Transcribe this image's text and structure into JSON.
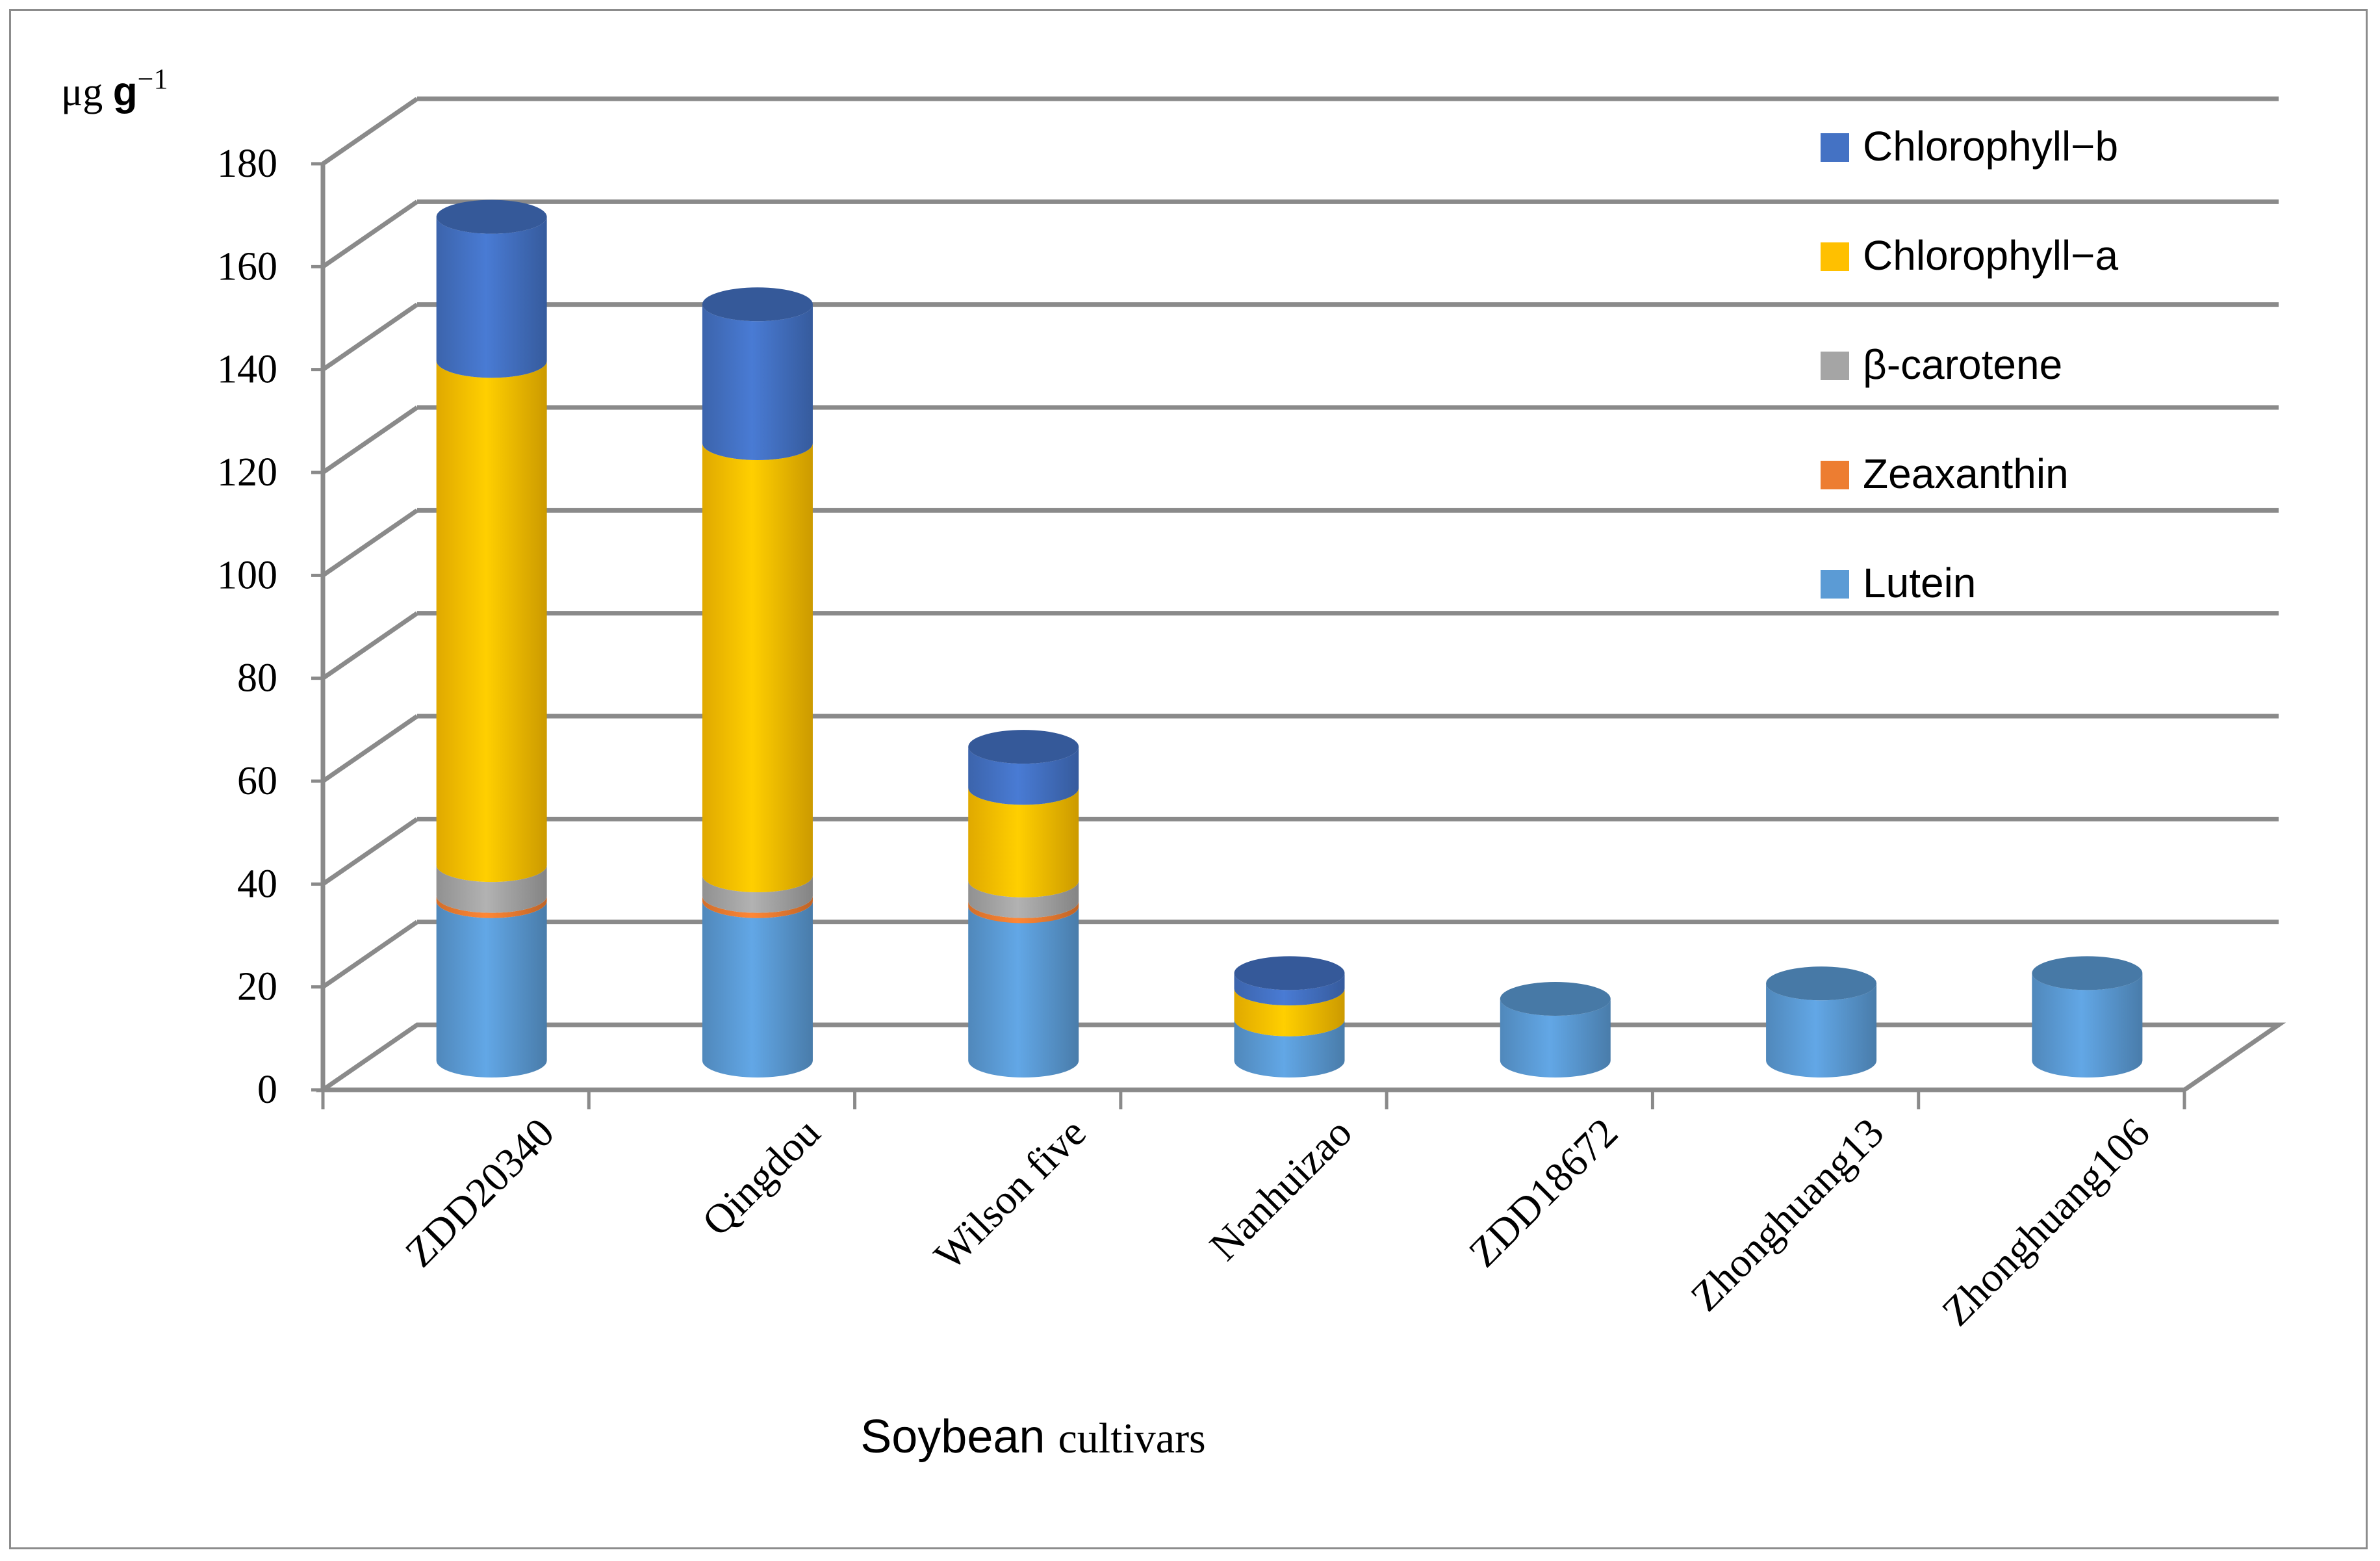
{
  "chart_data": {
    "type": "bar",
    "stacked": true,
    "style": "3d-cylinder",
    "title": "",
    "unit_label_main": "μg ",
    "unit_label_bold": "g",
    "unit_label_sup": "−1",
    "xlabel_part1": "Soybean ",
    "xlabel_part2": "cultivars",
    "ylim": [
      0,
      180
    ],
    "yticks": [
      0,
      20,
      40,
      60,
      80,
      100,
      120,
      140,
      160,
      180
    ],
    "yticks_text": [
      "0",
      "20",
      "40",
      "60",
      "80",
      "100",
      "120",
      "140",
      "160",
      "180"
    ],
    "grid": true,
    "legend_position": "top-right",
    "categories": [
      "ZDD20340",
      "Qingdou",
      "Wilson five",
      "Nanhuizao",
      "ZDD18672",
      "Zhonghuang13",
      "Zhonghuang106"
    ],
    "series": [
      {
        "name": "Lutein",
        "color": "#5b9bd5",
        "values": [
          31,
          31,
          30,
          8,
          12,
          15,
          17
        ]
      },
      {
        "name": "Zeaxanthin",
        "color": "#ed7d31",
        "values": [
          1,
          1,
          1,
          0,
          0,
          0,
          0
        ]
      },
      {
        "name": "β-carotene",
        "color": "#a5a5a5",
        "values": [
          6,
          4,
          4,
          0,
          0,
          0,
          0
        ]
      },
      {
        "name": "Chlorophyll−a",
        "color": "#ffc000",
        "values": [
          98,
          84,
          18,
          6,
          0,
          0,
          0
        ]
      },
      {
        "name": "Chlorophyll−b",
        "color": "#4472c4",
        "values": [
          28,
          27,
          8,
          3,
          0,
          0,
          0
        ]
      }
    ],
    "legend_order": [
      "Chlorophyll−b",
      "Chlorophyll−a",
      "β-carotene",
      "Zeaxanthin",
      "Lutein"
    ]
  }
}
